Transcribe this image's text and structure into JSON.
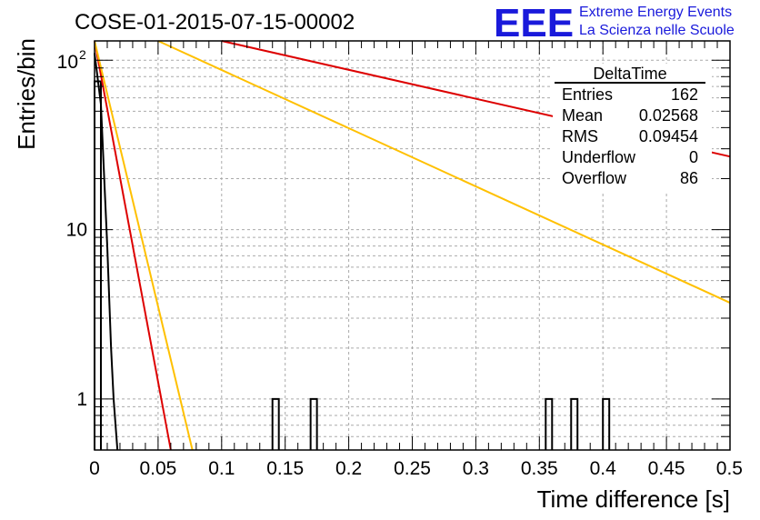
{
  "chart_data": {
    "type": "line",
    "title": "COSE-01-2015-07-15-00002",
    "xlabel": "Time difference [s]",
    "ylabel": "Entries/bin",
    "xlim": [
      0,
      0.5
    ],
    "ylim": [
      0.5,
      130
    ],
    "yscale": "log",
    "grid": true,
    "x_ticks": [
      "0",
      "0.05",
      "0.1",
      "0.15",
      "0.2",
      "0.25",
      "0.3",
      "0.35",
      "0.4",
      "0.45",
      "0.5"
    ],
    "x_tick_values": [
      0,
      0.05,
      0.1,
      0.15,
      0.2,
      0.25,
      0.3,
      0.35,
      0.4,
      0.45,
      0.5
    ],
    "y_ticks": [
      {
        "label": "1",
        "value": 1
      },
      {
        "label": "10",
        "value": 10
      },
      {
        "label": "10",
        "sup": "2",
        "value": 100
      }
    ],
    "histogram": {
      "bin_width": 0.005,
      "underflow_floor": 0.5,
      "bins": [
        {
          "x": 0.0,
          "count": 75
        },
        {
          "x": 0.14,
          "count": 1
        },
        {
          "x": 0.17,
          "count": 1
        },
        {
          "x": 0.355,
          "count": 1
        },
        {
          "x": 0.375,
          "count": 1
        },
        {
          "x": 0.4,
          "count": 1
        }
      ]
    },
    "series": [
      {
        "color": "#000000",
        "points": [
          [
            0.0,
            110
          ],
          [
            0.005,
            55
          ],
          [
            0.01,
            8
          ],
          [
            0.013,
            2
          ],
          [
            0.015,
            1
          ],
          [
            0.018,
            0.5
          ]
        ]
      },
      {
        "color": "#dd0000",
        "points": [
          [
            0.0,
            130
          ],
          [
            0.06,
            0.5
          ]
        ]
      },
      {
        "color": "#ffc000",
        "points": [
          [
            0.0,
            130
          ],
          [
            0.077,
            0.5
          ]
        ]
      },
      {
        "color": "#ffc000",
        "points": [
          [
            0.05,
            130
          ],
          [
            0.5,
            3.7
          ]
        ]
      },
      {
        "color": "#dd0000",
        "points": [
          [
            0.1,
            130
          ],
          [
            0.5,
            27
          ]
        ]
      }
    ],
    "stats_box": {
      "title": "DeltaTime",
      "rows": [
        {
          "label": "Entries",
          "value": "162"
        },
        {
          "label": "Mean",
          "value": "0.02568"
        },
        {
          "label": "RMS",
          "value": "0.09454"
        },
        {
          "label": "Underflow",
          "value": "0"
        },
        {
          "label": "Overflow",
          "value": "86"
        }
      ]
    }
  },
  "logo": {
    "mark": "EEE",
    "line1": "Extreme Energy Events",
    "line2": "La Scienza nelle Scuole"
  }
}
